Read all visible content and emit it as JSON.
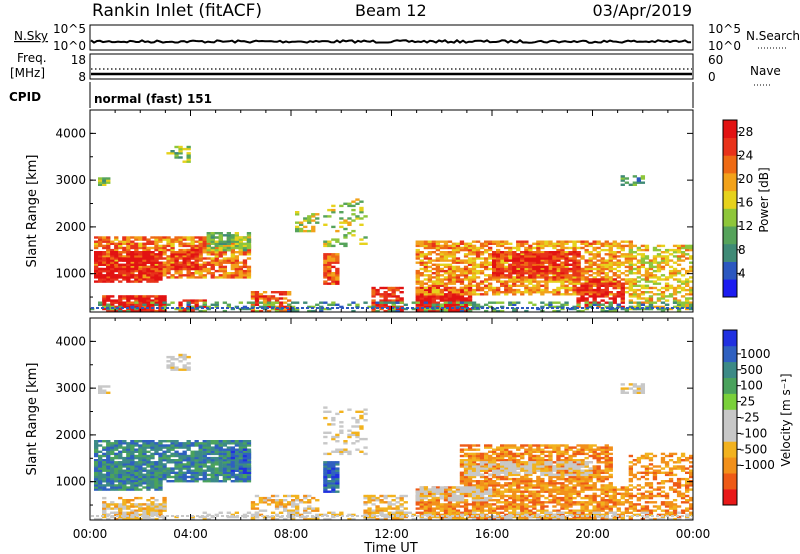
{
  "header": {
    "station": "Rankin Inlet (fitACF)",
    "beam": "Beam 12",
    "date": "03/Apr/2019"
  },
  "strip_panels": {
    "nsky": {
      "left_label": "N.Sky",
      "left_ticks": [
        "10^5",
        "10^0"
      ],
      "right_label": "N.Search",
      "right_ticks": [
        "10^5",
        "10^0"
      ]
    },
    "freq": {
      "left_label_1": "Freq.",
      "left_label_2": "[MHz]",
      "left_ticks": [
        "18",
        "8"
      ],
      "right_label": "Nave",
      "right_ticks": [
        "60",
        "0"
      ]
    },
    "cpid": {
      "label": "CPID",
      "program": "normal (fast) 151"
    }
  },
  "colors": {
    "power": [
      "#1c1cf0",
      "#2b57c0",
      "#3f8a76",
      "#56a35b",
      "#8ec63a",
      "#e6d21c",
      "#f2a21a",
      "#ee6a14",
      "#e8321a",
      "#e21212"
    ],
    "velocity": [
      "#e81818",
      "#ee5a16",
      "#f2901a",
      "#f2b21e",
      "#c8c8c8",
      "#c8c8c8",
      "#7ad03a",
      "#4aa25c",
      "#3c8a86",
      "#2f60c0",
      "#2030e0"
    ]
  },
  "chart_data": [
    {
      "type": "heatmap",
      "title": "Power",
      "ylabel": "Slant Range [km]",
      "ylim": [
        180,
        4500
      ],
      "y_ticks": [
        "4000",
        "3000",
        "2000",
        "1000"
      ],
      "y_tick_values": [
        4000,
        3000,
        2000,
        1000
      ],
      "colorbar": {
        "label": "Power [dB]",
        "ticks": [
          "28",
          "24",
          "20",
          "16",
          "12",
          "8",
          "4"
        ],
        "range": [
          0,
          30
        ]
      },
      "regions": [
        {
          "t0": 0.3,
          "t1": 6.4,
          "r0": 900,
          "r1": 1800,
          "v": 22,
          "d": 0.8
        },
        {
          "t0": 0.3,
          "t1": 2.8,
          "r0": 850,
          "r1": 1450,
          "v": 28,
          "d": 0.85
        },
        {
          "t0": 3.3,
          "t1": 4.3,
          "r0": 1100,
          "r1": 1500,
          "v": 27,
          "d": 0.8
        },
        {
          "t0": 4.8,
          "t1": 6.4,
          "r0": 1500,
          "r1": 1850,
          "v": 13,
          "d": 0.8
        },
        {
          "t0": 0.6,
          "t1": 3.0,
          "r0": 180,
          "r1": 500,
          "v": 28,
          "d": 0.85
        },
        {
          "t0": 3.6,
          "t1": 4.6,
          "r0": 180,
          "r1": 450,
          "v": 27,
          "d": 0.8
        },
        {
          "t0": 6.5,
          "t1": 8.0,
          "r0": 180,
          "r1": 600,
          "v": 24,
          "d": 0.6
        },
        {
          "t0": 9.4,
          "t1": 9.9,
          "r0": 800,
          "r1": 1400,
          "v": 23,
          "d": 0.9
        },
        {
          "t0": 11.3,
          "t1": 12.4,
          "r0": 180,
          "r1": 700,
          "v": 26,
          "d": 0.75
        },
        {
          "t0": 13.0,
          "t1": 15.2,
          "r0": 180,
          "r1": 700,
          "v": 29,
          "d": 0.95
        },
        {
          "t0": 13.0,
          "t1": 21.5,
          "r0": 550,
          "r1": 1700,
          "v": 20,
          "d": 0.7
        },
        {
          "t0": 16.0,
          "t1": 19.5,
          "r0": 900,
          "r1": 1450,
          "v": 26,
          "d": 0.75
        },
        {
          "t0": 19.5,
          "t1": 21.2,
          "r0": 300,
          "r1": 900,
          "v": 27,
          "d": 0.7
        },
        {
          "t0": 21.5,
          "t1": 24.0,
          "r0": 250,
          "r1": 1600,
          "v": 17,
          "d": 0.55
        },
        {
          "t0": 0.0,
          "t1": 24.0,
          "r0": 180,
          "r1": 380,
          "v": 10,
          "d": 0.35
        },
        {
          "t0": 3.1,
          "t1": 4.0,
          "r0": 3400,
          "r1": 3700,
          "v": 13,
          "d": 0.5
        },
        {
          "t0": 0.4,
          "t1": 0.7,
          "r0": 2900,
          "r1": 3050,
          "v": 12,
          "d": 0.7
        },
        {
          "t0": 21.2,
          "t1": 22.0,
          "r0": 2900,
          "r1": 3100,
          "v": 8,
          "d": 0.6
        },
        {
          "t0": 8.2,
          "t1": 9.0,
          "r0": 1900,
          "r1": 2300,
          "v": 15,
          "d": 0.4
        },
        {
          "t0": 9.3,
          "t1": 11.0,
          "r0": 1600,
          "r1": 2600,
          "v": 14,
          "d": 0.25
        }
      ]
    },
    {
      "type": "heatmap",
      "title": "Velocity",
      "ylabel": "Slant Range [km]",
      "ylim": [
        180,
        4500
      ],
      "y_ticks": [
        "4000",
        "3000",
        "2000",
        "1000"
      ],
      "y_tick_values": [
        4000,
        3000,
        2000,
        1000
      ],
      "x_ticks": [
        "00:00",
        "04:00",
        "08:00",
        "12:00",
        "16:00",
        "20:00",
        "00:00"
      ],
      "x_tick_hours": [
        0,
        4,
        8,
        12,
        16,
        20,
        24
      ],
      "xlabel": "Time UT",
      "colorbar": {
        "label": "Velocity [m s⁻¹]",
        "ticks": [
          "1000",
          "500",
          "100",
          "25",
          "-25",
          "-100",
          "-500",
          "-1000"
        ],
        "classes": 11
      },
      "regions": [
        {
          "t0": 0.3,
          "t1": 6.4,
          "r0": 1000,
          "r1": 1850,
          "v": 8,
          "d": 0.85
        },
        {
          "t0": 0.3,
          "t1": 2.8,
          "r0": 850,
          "r1": 1400,
          "v": 8,
          "d": 0.8
        },
        {
          "t0": 5.7,
          "t1": 6.3,
          "r0": 1200,
          "r1": 1700,
          "v": 9,
          "d": 0.7
        },
        {
          "t0": 9.4,
          "t1": 9.9,
          "r0": 800,
          "r1": 1400,
          "v": 9,
          "d": 0.85
        },
        {
          "t0": 0.6,
          "t1": 3.0,
          "r0": 180,
          "r1": 500,
          "v": 4,
          "d": 0.5
        },
        {
          "t0": 0.5,
          "t1": 3.0,
          "r0": 200,
          "r1": 650,
          "v": 3,
          "d": 0.4
        },
        {
          "t0": 6.5,
          "t1": 9.0,
          "r0": 180,
          "r1": 700,
          "v": 3,
          "d": 0.55
        },
        {
          "t0": 11.0,
          "t1": 12.5,
          "r0": 180,
          "r1": 700,
          "v": 3,
          "d": 0.6
        },
        {
          "t0": 13.0,
          "t1": 21.5,
          "r0": 200,
          "r1": 900,
          "v": 2,
          "d": 0.75
        },
        {
          "t0": 14.8,
          "t1": 20.8,
          "r0": 900,
          "r1": 1800,
          "v": 2,
          "d": 0.75
        },
        {
          "t0": 15.0,
          "t1": 20.0,
          "r0": 1150,
          "r1": 1400,
          "v": 4,
          "d": 0.7
        },
        {
          "t0": 13.0,
          "t1": 16.0,
          "r0": 600,
          "r1": 900,
          "v": 4,
          "d": 0.7
        },
        {
          "t0": 21.5,
          "t1": 24.0,
          "r0": 200,
          "r1": 1600,
          "v": 2,
          "d": 0.5
        },
        {
          "t0": 0.0,
          "t1": 24.0,
          "r0": 180,
          "r1": 330,
          "v": 4,
          "d": 0.3
        },
        {
          "t0": 3.1,
          "t1": 4.0,
          "r0": 3400,
          "r1": 3700,
          "v": 4,
          "d": 0.5
        },
        {
          "t0": 0.4,
          "t1": 0.7,
          "r0": 2900,
          "r1": 3050,
          "v": 4,
          "d": 0.7
        },
        {
          "t0": 21.2,
          "t1": 22.0,
          "r0": 2900,
          "r1": 3100,
          "v": 4,
          "d": 0.6
        },
        {
          "t0": 9.3,
          "t1": 11.0,
          "r0": 1600,
          "r1": 2600,
          "v": 4,
          "d": 0.25
        }
      ]
    }
  ]
}
